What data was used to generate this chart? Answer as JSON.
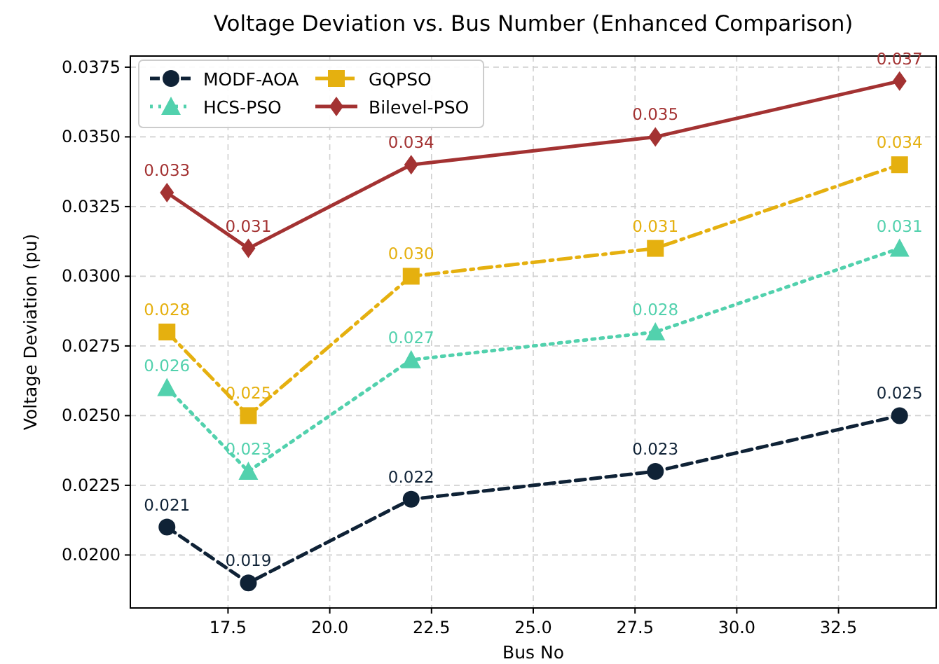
{
  "chart_data": {
    "type": "line",
    "title": "Voltage Deviation vs. Bus Number (Enhanced Comparison)",
    "xlabel": "Bus No",
    "ylabel": "Voltage Deviation (pu)",
    "x": [
      16,
      18,
      22,
      28,
      34
    ],
    "series": [
      {
        "name": "MODF-AOA",
        "color": "#0f2236",
        "values": [
          0.021,
          0.019,
          0.022,
          0.023,
          0.025
        ],
        "value_labels": [
          "0.021",
          "0.019",
          "0.022",
          "0.023",
          "0.025"
        ],
        "marker": "circle",
        "line_style": "dashed"
      },
      {
        "name": "GQPSO",
        "color": "#e5b00f",
        "values": [
          0.028,
          0.025,
          0.03,
          0.031,
          0.034
        ],
        "value_labels": [
          "0.028",
          "0.025",
          "0.030",
          "0.031",
          "0.034"
        ],
        "marker": "square",
        "line_style": "dashdot"
      },
      {
        "name": "HCS-PSO",
        "color": "#52d1ad",
        "values": [
          0.026,
          0.023,
          0.027,
          0.028,
          0.031
        ],
        "value_labels": [
          "0.026",
          "0.023",
          "0.027",
          "0.028",
          "0.031"
        ],
        "marker": "triangle",
        "line_style": "dotted"
      },
      {
        "name": "Bilevel-PSO",
        "color": "#a33232",
        "values": [
          0.033,
          0.031,
          0.034,
          0.035,
          0.037
        ],
        "value_labels": [
          "0.033",
          "0.031",
          "0.034",
          "0.035",
          "0.037"
        ],
        "marker": "diamond",
        "line_style": "solid"
      }
    ],
    "xlim": [
      15.1,
      34.9
    ],
    "xticks": [
      {
        "value": 17.5,
        "label": "17.5"
      },
      {
        "value": 20,
        "label": "20.0"
      },
      {
        "value": 22.5,
        "label": "22.5"
      },
      {
        "value": 25,
        "label": "25.0"
      },
      {
        "value": 27.5,
        "label": "27.5"
      },
      {
        "value": 30,
        "label": "30.0"
      },
      {
        "value": 32.5,
        "label": "32.5"
      }
    ],
    "ylim": [
      0.0181,
      0.0379
    ],
    "yticks": [
      {
        "value": 0.02,
        "label": "0.0200"
      },
      {
        "value": 0.0225,
        "label": "0.0225"
      },
      {
        "value": 0.025,
        "label": "0.0250"
      },
      {
        "value": 0.0275,
        "label": "0.0275"
      },
      {
        "value": 0.03,
        "label": "0.0300"
      },
      {
        "value": 0.0325,
        "label": "0.0325"
      },
      {
        "value": 0.035,
        "label": "0.0350"
      },
      {
        "value": 0.0375,
        "label": "0.0375"
      }
    ],
    "grid": true,
    "legend": "top left"
  }
}
